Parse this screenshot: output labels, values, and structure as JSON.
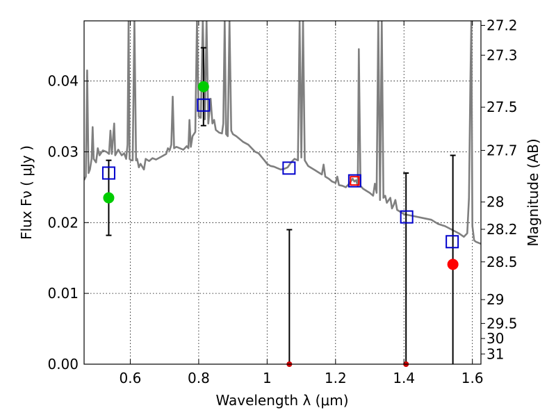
{
  "chart_data": {
    "type": "scatter",
    "xlabel": "Wavelength  λ (μm)",
    "ylabel": "Flux  Fν  ( μJy )",
    "y2label": "Magnitude (AB)",
    "xlim": [
      0.465,
      1.625
    ],
    "ylim": [
      0,
      0.0485
    ],
    "grid": true,
    "colors": {
      "model": "#7f7f7f",
      "model_flux": "#0000cc",
      "observed_green": "#00cc00",
      "observed_red": "#ff0000",
      "errorbar": "#000000"
    },
    "x_ticks": [
      {
        "value": 0.6,
        "label": "0.6"
      },
      {
        "value": 0.8,
        "label": "0.8"
      },
      {
        "value": 1.0,
        "label": "1"
      },
      {
        "value": 1.2,
        "label": "1.2"
      },
      {
        "value": 1.4,
        "label": "1.4"
      },
      {
        "value": 1.6,
        "label": "1.6"
      }
    ],
    "y_ticks": [
      {
        "value": 0.0,
        "label": "0.00"
      },
      {
        "value": 0.01,
        "label": "0.01"
      },
      {
        "value": 0.02,
        "label": "0.02"
      },
      {
        "value": 0.03,
        "label": "0.03"
      },
      {
        "value": 0.04,
        "label": "0.04"
      }
    ],
    "mag_ticks": [
      {
        "value": 27.2,
        "label": "27.2"
      },
      {
        "value": 27.3,
        "label": "27.3"
      },
      {
        "value": 27.5,
        "label": "27.5"
      },
      {
        "value": 27.7,
        "label": "27.7"
      },
      {
        "value": 28.0,
        "label": "28"
      },
      {
        "value": 28.2,
        "label": "28.2"
      },
      {
        "value": 28.5,
        "label": "28.5"
      },
      {
        "value": 29.0,
        "label": "29"
      },
      {
        "value": 29.5,
        "label": "29.5"
      },
      {
        "value": 30.0,
        "label": "30"
      },
      {
        "value": 31.0,
        "label": "31"
      }
    ],
    "model_spectrum": [
      [
        0.465,
        0.026
      ],
      [
        0.47,
        0.0265
      ],
      [
        0.474,
        0.0415
      ],
      [
        0.478,
        0.027
      ],
      [
        0.482,
        0.0275
      ],
      [
        0.487,
        0.029
      ],
      [
        0.49,
        0.0335
      ],
      [
        0.493,
        0.029
      ],
      [
        0.5,
        0.0285
      ],
      [
        0.505,
        0.0305
      ],
      [
        0.51,
        0.0295
      ],
      [
        0.52,
        0.0302
      ],
      [
        0.53,
        0.03
      ],
      [
        0.538,
        0.0297
      ],
      [
        0.542,
        0.033
      ],
      [
        0.546,
        0.0297
      ],
      [
        0.553,
        0.034
      ],
      [
        0.556,
        0.0295
      ],
      [
        0.565,
        0.0303
      ],
      [
        0.575,
        0.0295
      ],
      [
        0.582,
        0.0298
      ],
      [
        0.588,
        0.029
      ],
      [
        0.592,
        0.031
      ],
      [
        0.595,
        0.0485
      ],
      [
        0.598,
        0.029
      ],
      [
        0.602,
        0.0288
      ],
      [
        0.607,
        0.0288
      ],
      [
        0.612,
        0.0485
      ],
      [
        0.617,
        0.0288
      ],
      [
        0.62,
        0.029
      ],
      [
        0.625,
        0.0278
      ],
      [
        0.63,
        0.0283
      ],
      [
        0.64,
        0.0275
      ],
      [
        0.645,
        0.029
      ],
      [
        0.655,
        0.0287
      ],
      [
        0.665,
        0.0291
      ],
      [
        0.675,
        0.0289
      ],
      [
        0.69,
        0.0293
      ],
      [
        0.705,
        0.0297
      ],
      [
        0.71,
        0.0305
      ],
      [
        0.715,
        0.0302
      ],
      [
        0.72,
        0.031
      ],
      [
        0.724,
        0.0378
      ],
      [
        0.728,
        0.0305
      ],
      [
        0.735,
        0.0307
      ],
      [
        0.745,
        0.0305
      ],
      [
        0.755,
        0.0303
      ],
      [
        0.765,
        0.0308
      ],
      [
        0.77,
        0.0305
      ],
      [
        0.773,
        0.0345
      ],
      [
        0.777,
        0.0307
      ],
      [
        0.782,
        0.0322
      ],
      [
        0.79,
        0.0328
      ],
      [
        0.795,
        0.0485
      ],
      [
        0.8,
        0.035
      ],
      [
        0.806,
        0.0348
      ],
      [
        0.812,
        0.0485
      ],
      [
        0.818,
        0.0346
      ],
      [
        0.823,
        0.0485
      ],
      [
        0.828,
        0.034
      ],
      [
        0.835,
        0.0375
      ],
      [
        0.84,
        0.034
      ],
      [
        0.845,
        0.0345
      ],
      [
        0.85,
        0.0331
      ],
      [
        0.86,
        0.0327
      ],
      [
        0.868,
        0.0326
      ],
      [
        0.872,
        0.034
      ],
      [
        0.876,
        0.0485
      ],
      [
        0.88,
        0.0325
      ],
      [
        0.885,
        0.0322
      ],
      [
        0.89,
        0.0485
      ],
      [
        0.895,
        0.033
      ],
      [
        0.9,
        0.0325
      ],
      [
        0.91,
        0.0322
      ],
      [
        0.92,
        0.0318
      ],
      [
        0.93,
        0.0314
      ],
      [
        0.945,
        0.031
      ],
      [
        0.955,
        0.0305
      ],
      [
        0.965,
        0.03
      ],
      [
        0.975,
        0.0298
      ],
      [
        0.985,
        0.0292
      ],
      [
        0.992,
        0.0288
      ],
      [
        1.0,
        0.0283
      ],
      [
        1.01,
        0.028
      ],
      [
        1.02,
        0.0279
      ],
      [
        1.03,
        0.0277
      ],
      [
        1.04,
        0.0275
      ],
      [
        1.05,
        0.0276
      ],
      [
        1.06,
        0.0278
      ],
      [
        1.07,
        0.0285
      ],
      [
        1.08,
        0.029
      ],
      [
        1.09,
        0.0288
      ],
      [
        1.095,
        0.0485
      ],
      [
        1.1,
        0.0292
      ],
      [
        1.105,
        0.0485
      ],
      [
        1.11,
        0.0288
      ],
      [
        1.12,
        0.028
      ],
      [
        1.13,
        0.0277
      ],
      [
        1.14,
        0.0274
      ],
      [
        1.15,
        0.0271
      ],
      [
        1.16,
        0.0268
      ],
      [
        1.165,
        0.0282
      ],
      [
        1.17,
        0.0265
      ],
      [
        1.18,
        0.0262
      ],
      [
        1.19,
        0.0258
      ],
      [
        1.2,
        0.0256
      ],
      [
        1.205,
        0.0265
      ],
      [
        1.21,
        0.0253
      ],
      [
        1.22,
        0.0252
      ],
      [
        1.23,
        0.025
      ],
      [
        1.24,
        0.0255
      ],
      [
        1.25,
        0.0262
      ],
      [
        1.255,
        0.0258
      ],
      [
        1.26,
        0.026
      ],
      [
        1.265,
        0.0252
      ],
      [
        1.268,
        0.0445
      ],
      [
        1.273,
        0.0252
      ],
      [
        1.28,
        0.0248
      ],
      [
        1.29,
        0.0245
      ],
      [
        1.3,
        0.0242
      ],
      [
        1.31,
        0.0238
      ],
      [
        1.315,
        0.0255
      ],
      [
        1.32,
        0.0242
      ],
      [
        1.325,
        0.0485
      ],
      [
        1.33,
        0.0232
      ],
      [
        1.335,
        0.0485
      ],
      [
        1.34,
        0.0235
      ],
      [
        1.345,
        0.0238
      ],
      [
        1.35,
        0.0228
      ],
      [
        1.36,
        0.0235
      ],
      [
        1.365,
        0.022
      ],
      [
        1.37,
        0.0225
      ],
      [
        1.375,
        0.0232
      ],
      [
        1.38,
        0.0218
      ],
      [
        1.39,
        0.0215
      ],
      [
        1.4,
        0.0212
      ],
      [
        1.42,
        0.021
      ],
      [
        1.44,
        0.0208
      ],
      [
        1.46,
        0.0206
      ],
      [
        1.48,
        0.0204
      ],
      [
        1.5,
        0.0198
      ],
      [
        1.52,
        0.0195
      ],
      [
        1.54,
        0.019
      ],
      [
        1.56,
        0.0185
      ],
      [
        1.575,
        0.018
      ],
      [
        1.585,
        0.0185
      ],
      [
        1.59,
        0.0235
      ],
      [
        1.594,
        0.039
      ],
      [
        1.597,
        0.0485
      ],
      [
        1.6,
        0.0195
      ],
      [
        1.605,
        0.0175
      ],
      [
        1.61,
        0.0173
      ],
      [
        1.62,
        0.0171
      ],
      [
        1.625,
        0.017
      ]
    ],
    "model_photometry": [
      {
        "x": 0.537,
        "y": 0.027,
        "color": "#0000cc"
      },
      {
        "x": 0.814,
        "y": 0.0366,
        "color": "#0000cc"
      },
      {
        "x": 1.064,
        "y": 0.0277,
        "color": "#0000cc"
      },
      {
        "x": 1.256,
        "y": 0.0259,
        "color": "#0000cc"
      },
      {
        "x": 1.256,
        "y": 0.0259,
        "color": "#ff0000"
      },
      {
        "x": 1.408,
        "y": 0.0208,
        "color": "#0000cc"
      },
      {
        "x": 1.541,
        "y": 0.0173,
        "color": "#0000cc"
      }
    ],
    "observed_photometry": [
      {
        "x": 0.537,
        "y": 0.0235,
        "y_err_low": 0.0182,
        "y_err_high": 0.0288,
        "color": "#00cc00"
      },
      {
        "x": 0.814,
        "y": 0.0392,
        "y_err_low": 0.0337,
        "y_err_high": 0.0447,
        "color": "#00cc00"
      },
      {
        "x": 1.065,
        "y": 0.0,
        "y_err_low": 0.0,
        "y_err_high": 0.019,
        "color": "#cc0000"
      },
      {
        "x": 1.406,
        "y": 0.0,
        "y_err_low": 0.0,
        "y_err_high": 0.027,
        "color": "#cc0000"
      },
      {
        "x": 1.543,
        "y": 0.0141,
        "y_err_low": 0.0,
        "y_err_high": 0.0295,
        "color": "#ff0000"
      }
    ]
  }
}
